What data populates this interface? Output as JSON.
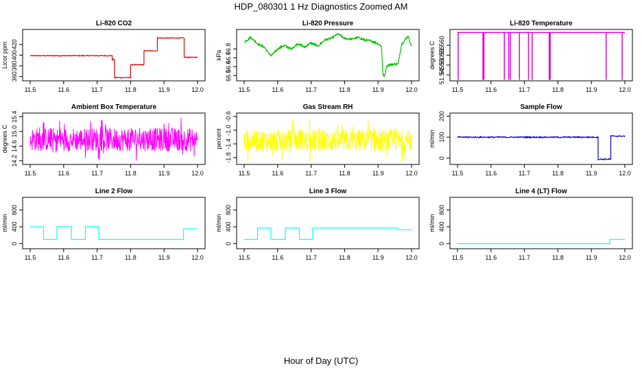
{
  "figure": {
    "title": "HDP_080301  1 Hz Diagnostics Zoomed AM",
    "xlabel": "Hour of Day (UTC)"
  },
  "chart_data": [
    {
      "type": "line",
      "title": "Li-820 CO2",
      "ylabel": "Licor ppm",
      "color": "#e00000",
      "xlim": [
        11.5,
        12.0
      ],
      "ylim": [
        352,
        448
      ],
      "xticks": [
        "11.5",
        "11.6",
        "11.7",
        "11.8",
        "11.9",
        "12.0"
      ],
      "yticks": [
        {
          "v": 360,
          "label": "360"
        },
        {
          "v": 380,
          "label": "380"
        },
        {
          "v": 400,
          "label": "400"
        },
        {
          "v": 420,
          "label": "420"
        }
      ],
      "segments": [
        [
          11.5,
          11.745,
          399
        ],
        [
          11.745,
          11.752,
          392
        ],
        [
          11.752,
          11.8,
          358
        ],
        [
          11.8,
          11.84,
          382
        ],
        [
          11.84,
          11.88,
          408
        ],
        [
          11.88,
          11.96,
          432
        ],
        [
          11.96,
          12.0,
          396
        ]
      ],
      "noise": 0.8
    },
    {
      "type": "line",
      "title": "Li-820 Pressure",
      "ylabel": "kPa",
      "color": "#00c000",
      "xlim": [
        11.5,
        12.0
      ],
      "ylim": [
        66.44,
        67.02
      ],
      "xticks": [
        "11.5",
        "11.6",
        "11.7",
        "11.8",
        "11.9",
        "12.0"
      ],
      "yticks": [
        {
          "v": 66.5,
          "label": "66.5"
        },
        {
          "v": 66.6,
          "label": "66.6"
        },
        {
          "v": 66.7,
          "label": "66.7"
        },
        {
          "v": 66.8,
          "label": "66.8"
        }
      ],
      "points": [
        [
          11.5,
          66.88
        ],
        [
          11.52,
          66.93
        ],
        [
          11.54,
          66.86
        ],
        [
          11.56,
          66.82
        ],
        [
          11.58,
          66.72
        ],
        [
          11.6,
          66.8
        ],
        [
          11.62,
          66.84
        ],
        [
          11.64,
          66.8
        ],
        [
          11.66,
          66.86
        ],
        [
          11.68,
          66.82
        ],
        [
          11.7,
          66.87
        ],
        [
          11.72,
          66.83
        ],
        [
          11.74,
          66.9
        ],
        [
          11.76,
          66.92
        ],
        [
          11.78,
          66.97
        ],
        [
          11.8,
          66.92
        ],
        [
          11.82,
          66.91
        ],
        [
          11.84,
          66.93
        ],
        [
          11.86,
          66.9
        ],
        [
          11.88,
          66.89
        ],
        [
          11.9,
          66.86
        ],
        [
          11.91,
          66.83
        ],
        [
          11.915,
          66.51
        ],
        [
          11.92,
          66.49
        ],
        [
          11.925,
          66.6
        ],
        [
          11.93,
          66.62
        ],
        [
          11.95,
          66.63
        ],
        [
          11.96,
          66.63
        ],
        [
          11.97,
          66.85
        ],
        [
          11.98,
          66.9
        ],
        [
          11.99,
          66.95
        ],
        [
          12.0,
          66.82
        ]
      ],
      "noise": 0.012
    },
    {
      "type": "spikes",
      "title": "Li-820 Temperature",
      "ylabel": "degrees C",
      "color": "#e000e0",
      "xlim": [
        11.5,
        12.0
      ],
      "ylim": [
        51.542,
        51.568
      ],
      "xticks": [
        "11.5",
        "11.6",
        "11.7",
        "11.8",
        "11.9",
        "12.0"
      ],
      "yticks": [
        {
          "v": 51.545,
          "label": "51.545"
        },
        {
          "v": 51.55,
          "label": "51.550"
        },
        {
          "v": 51.555,
          "label": "51.555"
        },
        {
          "v": 51.56,
          "label": "51.560"
        }
      ],
      "baseline": 51.5665,
      "low": 51.5425,
      "spike_x": [
        11.502,
        11.576,
        11.579,
        11.64,
        11.653,
        11.658,
        11.685,
        11.712,
        11.723,
        11.774,
        11.777,
        11.944,
        11.992
      ]
    },
    {
      "type": "noise",
      "title": "Ambient Box Temperature",
      "ylabel": "degrees C",
      "color": "#ff00ff",
      "xlim": [
        11.5,
        12.0
      ],
      "ylim": [
        14.1,
        15.5
      ],
      "xticks": [
        "11.5",
        "11.6",
        "11.7",
        "11.8",
        "11.9",
        "12.0"
      ],
      "yticks": [
        {
          "v": 14.2,
          "label": "14.2"
        },
        {
          "v": 14.6,
          "label": "14.6"
        },
        {
          "v": 15.0,
          "label": "15.0"
        },
        {
          "v": 15.4,
          "label": "15.4"
        }
      ],
      "center": 14.78,
      "amp": 0.32,
      "spike": 0.6
    },
    {
      "type": "noise",
      "title": "Gas Stream RH",
      "ylabel": "percent",
      "color": "#ffff00",
      "xlim": [
        11.5,
        12.0
      ],
      "ylim": [
        -2.0,
        -0.5
      ],
      "xticks": [
        "11.5",
        "11.6",
        "11.7",
        "11.8",
        "11.9",
        "12.0"
      ],
      "yticks": [
        {
          "v": -1.8,
          "label": "-1.8"
        },
        {
          "v": -1.4,
          "label": "-1.4"
        },
        {
          "v": -1.0,
          "label": "-1.0"
        },
        {
          "v": -0.6,
          "label": "-0.6"
        }
      ],
      "center": -1.3,
      "amp": 0.33,
      "spike": 0.65
    },
    {
      "type": "line",
      "title": "Sample Flow",
      "ylabel": "ml/min",
      "color": "#0000cc",
      "xlim": [
        11.5,
        12.0
      ],
      "ylim": [
        -30,
        215
      ],
      "xticks": [
        "11.5",
        "11.6",
        "11.7",
        "11.8",
        "11.9",
        "12.0"
      ],
      "yticks": [
        {
          "v": 0,
          "label": "0"
        },
        {
          "v": 100,
          "label": "100"
        },
        {
          "v": 200,
          "label": "200"
        }
      ],
      "segments": [
        [
          11.5,
          11.92,
          100
        ],
        [
          11.92,
          11.958,
          -5
        ],
        [
          11.958,
          12.0,
          105
        ]
      ],
      "noise": 3
    },
    {
      "type": "line",
      "title": "Line 2 Flow",
      "ylabel": "ml/min",
      "color": "#00ffff",
      "xlim": [
        11.5,
        12.0
      ],
      "ylim": [
        -120,
        1100
      ],
      "xticks": [
        "11.5",
        "11.6",
        "11.7",
        "11.8",
        "11.9",
        "12.0"
      ],
      "yticks": [
        {
          "v": 0,
          "label": "0"
        },
        {
          "v": 400,
          "label": "400"
        },
        {
          "v": 800,
          "label": "800"
        }
      ],
      "segments": [
        [
          11.5,
          11.54,
          400
        ],
        [
          11.54,
          11.58,
          100
        ],
        [
          11.58,
          11.623,
          400
        ],
        [
          11.623,
          11.665,
          100
        ],
        [
          11.665,
          11.705,
          400
        ],
        [
          11.705,
          11.958,
          100
        ],
        [
          11.958,
          12.0,
          350
        ]
      ],
      "noise": 0
    },
    {
      "type": "line",
      "title": "Line 3 Flow",
      "ylabel": "ml/min",
      "color": "#00ffff",
      "xlim": [
        11.5,
        12.0
      ],
      "ylim": [
        -120,
        1100
      ],
      "xticks": [
        "11.5",
        "11.6",
        "11.7",
        "11.8",
        "11.9",
        "12.0"
      ],
      "yticks": [
        {
          "v": 0,
          "label": "0"
        },
        {
          "v": 400,
          "label": "400"
        },
        {
          "v": 800,
          "label": "800"
        }
      ],
      "segments": [
        [
          11.5,
          11.54,
          100
        ],
        [
          11.54,
          11.58,
          370
        ],
        [
          11.58,
          11.623,
          100
        ],
        [
          11.623,
          11.665,
          370
        ],
        [
          11.665,
          11.705,
          100
        ],
        [
          11.705,
          11.96,
          370
        ],
        [
          11.96,
          12.0,
          330
        ]
      ],
      "noise": 0
    },
    {
      "type": "line",
      "title": "Line 4 (LT) Flow",
      "ylabel": "ml/min",
      "color": "#00ffff",
      "xlim": [
        11.5,
        12.0
      ],
      "ylim": [
        -120,
        1100
      ],
      "xticks": [
        "11.5",
        "11.6",
        "11.7",
        "11.8",
        "11.9",
        "12.0"
      ],
      "yticks": [
        {
          "v": 0,
          "label": "0"
        },
        {
          "v": 400,
          "label": "400"
        },
        {
          "v": 800,
          "label": "800"
        }
      ],
      "segments": [
        [
          11.5,
          11.955,
          0
        ],
        [
          11.955,
          12.0,
          100
        ]
      ],
      "noise": 0
    }
  ]
}
